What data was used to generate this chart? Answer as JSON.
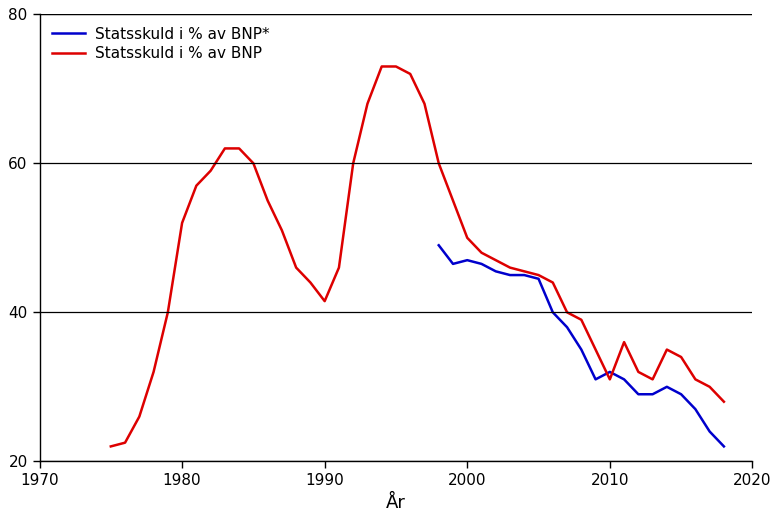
{
  "title": "",
  "xlabel": "År",
  "ylabel": "",
  "xlim": [
    1970,
    2020
  ],
  "ylim": [
    20,
    80
  ],
  "yticks": [
    20,
    40,
    60,
    80
  ],
  "xticks": [
    1970,
    1980,
    1990,
    2000,
    2010,
    2020
  ],
  "background_color": "#ffffff",
  "grid_color": "#000000",
  "red_series": {
    "label": "Statsskuld i % av BNP",
    "color": "#dd0000",
    "x": [
      1975,
      1976,
      1977,
      1978,
      1979,
      1980,
      1981,
      1982,
      1983,
      1984,
      1985,
      1986,
      1987,
      1988,
      1989,
      1990,
      1991,
      1992,
      1993,
      1994,
      1995,
      1996,
      1997,
      1998,
      1999,
      2000,
      2001,
      2002,
      2003,
      2004,
      2005,
      2006,
      2007,
      2008,
      2009,
      2010,
      2011,
      2012,
      2013,
      2014,
      2015,
      2016,
      2017,
      2018
    ],
    "y": [
      22.0,
      22.5,
      26.0,
      32.0,
      40.0,
      52.0,
      57.0,
      59.0,
      62.0,
      62.0,
      60.0,
      55.0,
      51.0,
      46.0,
      44.0,
      41.5,
      46.0,
      60.0,
      68.0,
      73.0,
      73.0,
      72.0,
      68.0,
      60.0,
      55.0,
      50.0,
      48.0,
      47.0,
      46.0,
      45.5,
      45.0,
      44.0,
      40.0,
      39.0,
      35.0,
      31.0,
      36.0,
      32.0,
      31.0,
      35.0,
      34.0,
      31.0,
      30.0,
      28.0
    ]
  },
  "blue_series": {
    "label": "Statsskuld i % av BNP*",
    "color": "#0000cc",
    "x": [
      1998,
      1999,
      2000,
      2001,
      2002,
      2003,
      2004,
      2005,
      2006,
      2007,
      2008,
      2009,
      2010,
      2011,
      2012,
      2013,
      2014,
      2015,
      2016,
      2017,
      2018
    ],
    "y": [
      49.0,
      46.5,
      47.0,
      46.5,
      45.5,
      45.0,
      45.0,
      44.5,
      40.0,
      38.0,
      35.0,
      31.0,
      32.0,
      31.0,
      29.0,
      29.0,
      30.0,
      29.0,
      27.0,
      24.0,
      22.0
    ]
  },
  "legend_loc": "upper left",
  "legend_fontsize": 11,
  "tick_fontsize": 11,
  "xlabel_fontsize": 13,
  "linewidth": 1.8
}
